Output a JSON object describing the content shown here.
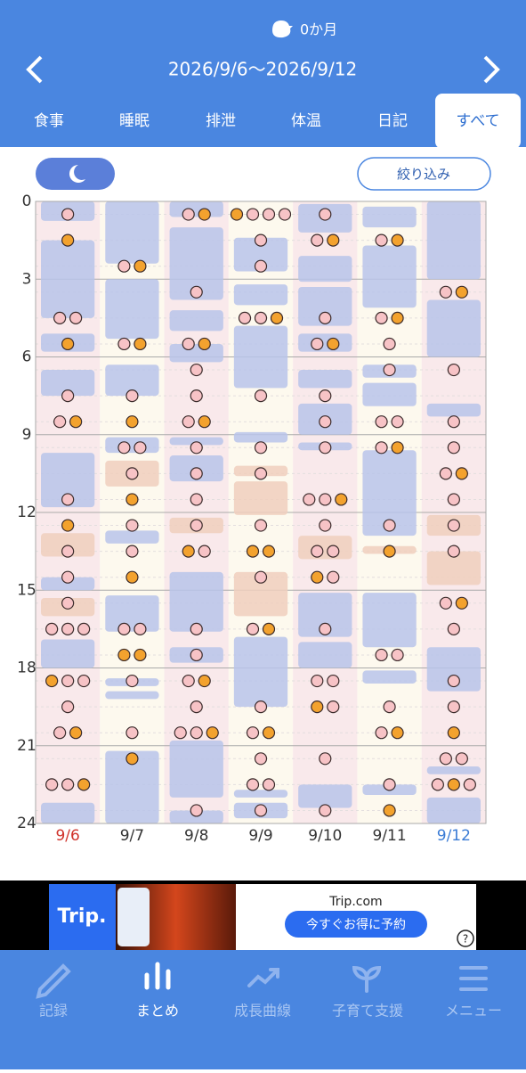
{
  "header": {
    "age": "0か月",
    "range": "2026/9/6〜2026/9/12"
  },
  "tabs": [
    "食事",
    "睡眠",
    "排泄",
    "体温",
    "日記",
    "すべて"
  ],
  "filter_button": "絞り込み",
  "chart_data": {
    "type": "timeline",
    "ylim": [
      0,
      24
    ],
    "yticks": [
      0,
      3,
      6,
      9,
      12,
      15,
      18,
      21,
      24
    ],
    "sleep_color": "#b8c4ea",
    "other_color": "#f0cfbd",
    "event_colors": [
      "#f7c3c6",
      "#f3a22e"
    ],
    "days": [
      {
        "label": "9/6",
        "label_color": "#d0342c",
        "sleep": [
          [
            0,
            0.75
          ],
          [
            1.5,
            4.5
          ],
          [
            5.1,
            5.8
          ],
          [
            6.5,
            7.5
          ],
          [
            9.7,
            11.8
          ],
          [
            14.5,
            15
          ],
          [
            16.9,
            18
          ],
          [
            23.2,
            24
          ]
        ],
        "other": [
          [
            12.8,
            13.7
          ],
          [
            15.3,
            16
          ]
        ],
        "event_hours": [
          0.5,
          1.5,
          4.5,
          4.5,
          5.5,
          7.5,
          8.5,
          8.5,
          11.5,
          12.5,
          13.5,
          14.5,
          15.5,
          16.5,
          16.5,
          16.5,
          18.5,
          18.5,
          18.5,
          19.5,
          20.5,
          20.5,
          22.5,
          22.5,
          22.5
        ],
        "event_kinds": [
          0,
          1,
          0,
          0,
          1,
          0,
          0,
          1,
          0,
          1,
          0,
          0,
          0,
          0,
          0,
          0,
          1,
          0,
          0,
          0,
          0,
          1,
          0,
          0,
          1
        ]
      },
      {
        "label": "9/7",
        "label_color": "#333333",
        "sleep": [
          [
            0,
            2.4
          ],
          [
            3,
            5.3
          ],
          [
            6.3,
            7.5
          ],
          [
            9.1,
            9.7
          ],
          [
            12.7,
            13.2
          ],
          [
            15.2,
            16.6
          ],
          [
            18.4,
            18.7
          ],
          [
            18.9,
            19.2
          ],
          [
            21.2,
            24
          ]
        ],
        "other": [
          [
            10,
            11
          ]
        ],
        "event_hours": [
          2.5,
          2.5,
          5.5,
          5.5,
          7.5,
          8.5,
          9.5,
          9.5,
          10.5,
          11.5,
          12.5,
          13.5,
          14.5,
          16.5,
          16.5,
          17.5,
          17.5,
          18.5,
          20.5,
          21.5
        ],
        "event_kinds": [
          0,
          1,
          0,
          1,
          0,
          1,
          0,
          0,
          0,
          1,
          0,
          0,
          1,
          0,
          0,
          1,
          1,
          0,
          0,
          1
        ]
      },
      {
        "label": "9/8",
        "label_color": "#333333",
        "sleep": [
          [
            0,
            0.6
          ],
          [
            1,
            3.8
          ],
          [
            4.2,
            5
          ],
          [
            5.5,
            6.2
          ],
          [
            9.1,
            9.4
          ],
          [
            9.8,
            10.8
          ],
          [
            14.3,
            16.6
          ],
          [
            17.2,
            17.8
          ],
          [
            20.8,
            23
          ],
          [
            23.5,
            24
          ]
        ],
        "other": [
          [
            12.2,
            12.8
          ]
        ],
        "event_hours": [
          0.5,
          0.5,
          3.5,
          5.5,
          5.5,
          6.5,
          7.5,
          8.5,
          8.5,
          9.5,
          10.5,
          11.5,
          12.5,
          13.5,
          13.5,
          16.5,
          17.5,
          18.5,
          18.5,
          19.5,
          20.5,
          20.5,
          20.5,
          23.5
        ],
        "event_kinds": [
          0,
          1,
          0,
          0,
          1,
          0,
          0,
          0,
          1,
          0,
          0,
          0,
          0,
          1,
          0,
          0,
          0,
          0,
          1,
          0,
          0,
          0,
          1,
          0
        ]
      },
      {
        "label": "9/9",
        "label_color": "#333333",
        "sleep": [
          [
            1.4,
            2.7
          ],
          [
            3.2,
            4
          ],
          [
            4.8,
            7.2
          ],
          [
            8.9,
            9.3
          ],
          [
            16.8,
            19.5
          ],
          [
            22.7,
            23
          ],
          [
            23.2,
            23.8
          ]
        ],
        "other": [
          [
            10.2,
            10.6
          ],
          [
            10.8,
            12.1
          ],
          [
            14.3,
            16
          ]
        ],
        "event_hours": [
          0.5,
          0.5,
          0.5,
          0.5,
          1.5,
          2.5,
          4.5,
          4.5,
          4.5,
          7.5,
          9.5,
          10.5,
          12.5,
          13.5,
          13.5,
          14.5,
          16.5,
          16.5,
          19.5,
          20.5,
          20.5,
          21.5,
          22.5,
          22.5,
          23.5
        ],
        "event_kinds": [
          1,
          0,
          0,
          0,
          0,
          0,
          0,
          0,
          1,
          0,
          0,
          0,
          0,
          1,
          1,
          0,
          0,
          1,
          0,
          0,
          1,
          0,
          0,
          0,
          0
        ]
      },
      {
        "label": "9/10",
        "label_color": "#333333",
        "sleep": [
          [
            0.1,
            1.2
          ],
          [
            2.1,
            3.1
          ],
          [
            3.3,
            4.8
          ],
          [
            5.1,
            5.8
          ],
          [
            6.5,
            7.2
          ],
          [
            7.8,
            9
          ],
          [
            9.3,
            9.6
          ],
          [
            15.1,
            16.8
          ],
          [
            17,
            18
          ],
          [
            22.5,
            23.4
          ]
        ],
        "other": [
          [
            12.9,
            13.8
          ]
        ],
        "event_hours": [
          0.5,
          1.5,
          1.5,
          4.5,
          5.5,
          5.5,
          7.5,
          8.5,
          9.5,
          11.5,
          11.5,
          11.5,
          12.5,
          13.5,
          13.5,
          14.5,
          14.5,
          16.5,
          18.5,
          18.5,
          19.5,
          19.5,
          21.5,
          23.5
        ],
        "event_kinds": [
          0,
          0,
          1,
          0,
          0,
          1,
          0,
          0,
          0,
          0,
          0,
          1,
          0,
          0,
          0,
          1,
          0,
          0,
          0,
          0,
          1,
          0,
          0,
          0
        ]
      },
      {
        "label": "9/11",
        "label_color": "#333333",
        "sleep": [
          [
            0.2,
            1
          ],
          [
            1.7,
            4.1
          ],
          [
            6.3,
            6.8
          ],
          [
            7,
            7.9
          ],
          [
            9.6,
            12.9
          ],
          [
            15.1,
            17.2
          ],
          [
            18.1,
            18.6
          ],
          [
            22.5,
            22.9
          ]
        ],
        "other": [
          [
            13.3,
            13.6
          ]
        ],
        "event_hours": [
          1.5,
          1.5,
          4.5,
          4.5,
          5.5,
          6.5,
          8.5,
          8.5,
          9.5,
          9.5,
          12.5,
          13.5,
          17.5,
          17.5,
          19.5,
          20.5,
          20.5,
          22.5,
          23.5
        ],
        "event_kinds": [
          0,
          1,
          0,
          1,
          0,
          0,
          0,
          0,
          0,
          1,
          0,
          1,
          0,
          0,
          0,
          0,
          1,
          0,
          1
        ]
      },
      {
        "label": "9/12",
        "label_color": "#3a7bd5",
        "sleep": [
          [
            0,
            3
          ],
          [
            3.8,
            6
          ],
          [
            7.8,
            8.3
          ],
          [
            17.2,
            18.9
          ],
          [
            21.8,
            22.1
          ],
          [
            23,
            24
          ]
        ],
        "other": [
          [
            12.1,
            12.9
          ],
          [
            13.5,
            14.8
          ]
        ],
        "event_hours": [
          3.5,
          3.5,
          6.5,
          8.5,
          9.5,
          10.5,
          10.5,
          11.5,
          12.5,
          13.5,
          15.5,
          15.5,
          16.5,
          18.5,
          19.5,
          20.5,
          21.5,
          21.5,
          22.5,
          22.5,
          22.5
        ],
        "event_kinds": [
          0,
          1,
          0,
          0,
          0,
          0,
          1,
          0,
          0,
          0,
          0,
          1,
          0,
          0,
          0,
          1,
          0,
          0,
          0,
          1,
          0
        ]
      }
    ]
  },
  "ad": {
    "logo": "Trip.",
    "brand": "Trip.com",
    "cta": "今すぐお得に予約",
    "info": "?"
  },
  "nav": [
    "記録",
    "まとめ",
    "成長曲線",
    "子育て支援",
    "メニュー"
  ]
}
